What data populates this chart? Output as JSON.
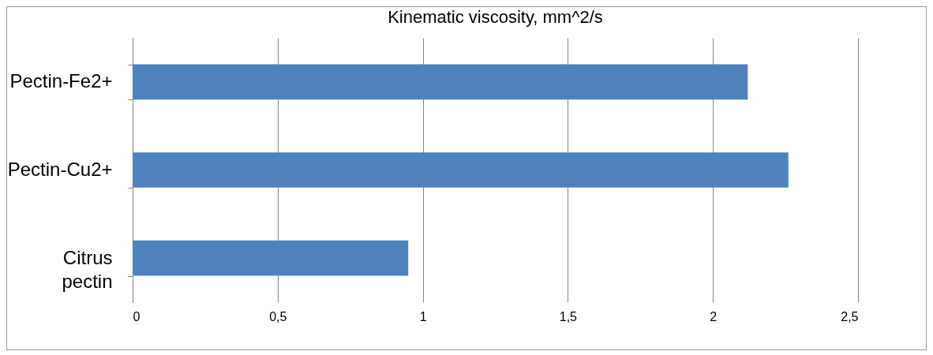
{
  "chart_data": {
    "type": "bar",
    "orientation": "horizontal",
    "title": "Kinematic viscosity, mm^2/s",
    "categories": [
      "Pectin-Fe2+",
      "Pectin-Cu2+",
      "Citrus pectin"
    ],
    "values": [
      2.12,
      2.26,
      0.95
    ],
    "color": "#4f81bd",
    "xlim": [
      0,
      2.5
    ],
    "xticks": [
      0,
      {
        "value": 0.5,
        "label": "0,5"
      },
      1,
      {
        "value": 1.5,
        "label": "1,5"
      },
      2,
      {
        "value": 2.5,
        "label": "2,5"
      }
    ],
    "grid": "x"
  }
}
